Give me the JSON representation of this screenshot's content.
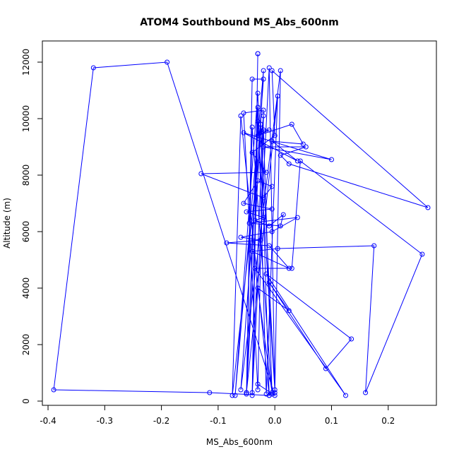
{
  "chart_data": {
    "type": "line",
    "title": "ATOM4 Southbound MS_Abs_600nm",
    "xlabel": "MS_Abs_600nm",
    "ylabel": "Altitude (m)",
    "xlim": [
      -0.41,
      0.285
    ],
    "ylim": [
      -150,
      12750
    ],
    "x_ticks": [
      -0.4,
      -0.3,
      -0.2,
      -0.1,
      0.0,
      0.1,
      0.2
    ],
    "x_tick_labels": [
      "-0.4",
      "-0.3",
      "-0.2",
      "-0.1",
      "0.0",
      "0.1",
      "0.2"
    ],
    "y_ticks": [
      0,
      2000,
      4000,
      6000,
      8000,
      10000,
      12000
    ],
    "y_tick_labels": [
      "0",
      "2000",
      "4000",
      "6000",
      "8000",
      "10000",
      "12000"
    ],
    "grid": false,
    "legend": "none",
    "series": [
      {
        "color": "#0000ff",
        "marker": "open-circle",
        "points": [
          [
            -0.03,
            12300
          ],
          [
            -0.03,
            12300
          ],
          [
            -0.04,
            200
          ],
          [
            -0.01,
            11800
          ],
          [
            0.0,
            300
          ],
          [
            0.01,
            11700
          ],
          [
            -0.06,
            400
          ],
          [
            -0.02,
            11400
          ],
          [
            -0.04,
            11400
          ],
          [
            -0.05,
            250
          ],
          [
            -0.02,
            11700
          ],
          [
            -0.07,
            200
          ],
          [
            -0.03,
            10900
          ],
          [
            -0.015,
            250
          ],
          [
            0.005,
            10800
          ],
          [
            -0.05,
            300
          ],
          [
            -0.03,
            10400
          ],
          [
            -0.04,
            300
          ],
          [
            -0.02,
            10300
          ],
          [
            -0.055,
            10200
          ],
          [
            -0.03,
            400
          ],
          [
            -0.02,
            10100
          ],
          [
            -0.075,
            200
          ],
          [
            -0.06,
            10100
          ],
          [
            -0.01,
            200
          ],
          [
            -0.025,
            9800
          ],
          [
            0.0,
            400
          ],
          [
            -0.03,
            9900
          ],
          [
            -0.05,
            300
          ],
          [
            -0.04,
            9700
          ],
          [
            -0.005,
            250
          ],
          [
            -0.02,
            9600
          ],
          [
            -0.01,
            9600
          ],
          [
            -0.03,
            9400
          ],
          [
            0.03,
            9800
          ],
          [
            0.05,
            9100
          ],
          [
            -0.005,
            9200
          ],
          [
            0.04,
            8500
          ],
          [
            -0.055,
            9500
          ],
          [
            0.1,
            8550
          ],
          [
            -0.02,
            9000
          ],
          [
            0.055,
            9000
          ],
          [
            0.01,
            8700
          ],
          [
            0.025,
            8400
          ],
          [
            0.27,
            6850
          ],
          [
            -0.005,
            11700
          ],
          [
            0.0,
            9400
          ],
          [
            -0.04,
            8800
          ],
          [
            -0.015,
            8100
          ],
          [
            -0.13,
            8050
          ],
          [
            -0.02,
            7200
          ],
          [
            -0.005,
            7600
          ],
          [
            -0.03,
            7800
          ],
          [
            -0.055,
            7000
          ],
          [
            -0.005,
            6800
          ],
          [
            -0.05,
            6700
          ],
          [
            -0.02,
            6500
          ],
          [
            -0.035,
            6400
          ],
          [
            -0.01,
            6200
          ],
          [
            0.015,
            6600
          ],
          [
            0.01,
            6200
          ],
          [
            -0.045,
            6300
          ],
          [
            0.04,
            6500
          ],
          [
            -0.005,
            6000
          ],
          [
            -0.06,
            5800
          ],
          [
            -0.025,
            5700
          ],
          [
            -0.085,
            5600
          ],
          [
            -0.01,
            5500
          ],
          [
            0.025,
            4700
          ],
          [
            -0.04,
            5300
          ],
          [
            0.005,
            5400
          ],
          [
            0.175,
            5500
          ],
          [
            0.16,
            300
          ],
          [
            0.26,
            5200
          ],
          [
            0.045,
            8500
          ],
          [
            0.03,
            4700
          ],
          [
            -0.035,
            4700
          ],
          [
            0.125,
            200
          ],
          [
            -0.015,
            4500
          ],
          [
            0.135,
            2200
          ],
          [
            0.09,
            1150
          ],
          [
            -0.01,
            4200
          ],
          [
            0.025,
            3200
          ],
          [
            -0.03,
            4000
          ],
          [
            -0.005,
            300
          ],
          [
            -0.01,
            200
          ],
          [
            -0.115,
            300
          ],
          [
            -0.39,
            400
          ],
          [
            -0.32,
            11800
          ],
          [
            -0.19,
            12000
          ],
          [
            0.0,
            200
          ],
          [
            -0.03,
            600
          ]
        ]
      }
    ]
  }
}
